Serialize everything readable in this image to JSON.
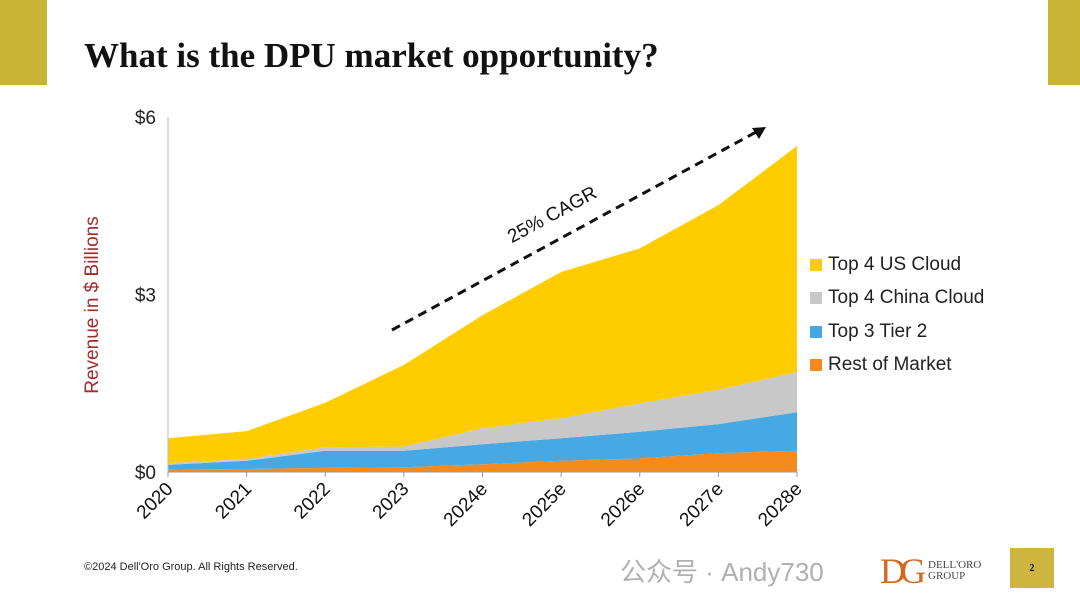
{
  "slide": {
    "title": "What is the DPU market opportunity?",
    "copyright": "©2024 Dell'Oro Group.  All Rights Reserved.",
    "page_number": "2",
    "logo_text": [
      "DELL'ORO",
      "GROUP"
    ],
    "watermark": "公众号 · Andy730"
  },
  "chart_data": {
    "type": "area",
    "stacked": true,
    "title": "",
    "xlabel": "",
    "ylabel": "Revenue in $ Billions",
    "ylim": [
      0,
      6
    ],
    "yticks": [
      {
        "value": 0,
        "label": "$0"
      },
      {
        "value": 3,
        "label": "$3"
      },
      {
        "value": 6,
        "label": "$6"
      }
    ],
    "categories": [
      "2020",
      "2021",
      "2022",
      "2023",
      "2024e",
      "2025e",
      "2026e",
      "2027e",
      "2028e"
    ],
    "series": [
      {
        "name": "Rest of Market",
        "color": "#f58a1f",
        "values": [
          0.04,
          0.05,
          0.07,
          0.08,
          0.13,
          0.19,
          0.23,
          0.32,
          0.36
        ]
      },
      {
        "name": "Top 3 Tier 2",
        "color": "#47a9e4",
        "values": [
          0.08,
          0.14,
          0.29,
          0.28,
          0.34,
          0.38,
          0.45,
          0.49,
          0.65
        ]
      },
      {
        "name": "Top 4 China Cloud",
        "color": "#c8c8c8",
        "values": [
          0.03,
          0.03,
          0.06,
          0.07,
          0.27,
          0.34,
          0.48,
          0.58,
          0.68
        ]
      },
      {
        "name": "Top 4 US Cloud",
        "color": "#ffcc00",
        "values": [
          0.42,
          0.47,
          0.75,
          1.38,
          1.91,
          2.47,
          2.62,
          3.12,
          3.82
        ]
      }
    ],
    "legend_order": [
      "Top 4 US Cloud",
      "Top 4 China Cloud",
      "Top 3 Tier 2",
      "Rest of Market"
    ],
    "legend_position": "right",
    "grid": false,
    "annotation": "25% CAGR"
  }
}
